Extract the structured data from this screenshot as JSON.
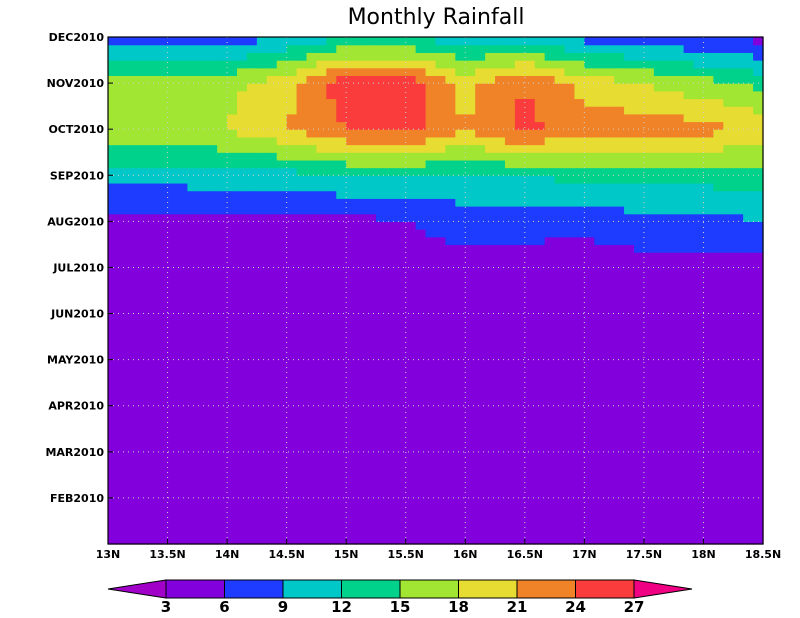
{
  "chart_data": {
    "type": "heatmap",
    "title": "Monthly Rainfall",
    "x_tick_labels": [
      "13N",
      "13.5N",
      "14N",
      "14.5N",
      "15N",
      "15.5N",
      "16N",
      "16.5N",
      "17N",
      "17.5N",
      "18N",
      "18.5N"
    ],
    "x_ticks": [
      13,
      13.5,
      14,
      14.5,
      15,
      15.5,
      16,
      16.5,
      17,
      17.5,
      18,
      18.5
    ],
    "xlim": [
      13,
      18.5
    ],
    "y_tick_labels": [
      "FEB2010",
      "MAR2010",
      "APR2010",
      "MAY2010",
      "JUN2010",
      "JUL2010",
      "AUG2010",
      "SEP2010",
      "OCT2010",
      "NOV2010",
      "DEC2010"
    ],
    "y_ticks": [
      2,
      3,
      4,
      5,
      6,
      7,
      8,
      9,
      10,
      11,
      12
    ],
    "ylim": [
      1,
      12
    ],
    "grid": true,
    "x": [
      13,
      13.5,
      14,
      14.5,
      15,
      15.5,
      16,
      16.5,
      17,
      17.5,
      18,
      18.5
    ],
    "y": [
      1,
      2,
      3,
      4,
      5,
      6,
      7,
      8,
      9,
      10,
      11,
      12
    ],
    "values": [
      [
        3,
        3,
        3,
        3,
        3,
        3,
        3,
        3,
        3,
        3,
        3,
        3
      ],
      [
        3,
        3,
        3,
        3,
        3,
        3,
        3,
        3,
        3,
        3,
        3,
        3
      ],
      [
        3,
        3,
        3,
        3,
        3,
        3,
        3,
        3,
        3,
        3,
        3,
        3
      ],
      [
        4,
        4,
        4,
        4,
        4,
        4,
        4,
        4,
        4,
        4,
        4,
        4
      ],
      [
        5,
        5,
        5,
        5,
        5,
        6,
        5,
        5,
        5,
        5,
        5,
        5
      ],
      [
        5,
        5,
        5,
        5,
        5,
        5,
        5,
        5,
        5,
        5,
        5,
        5
      ],
      [
        4,
        4,
        3,
        5,
        5,
        5,
        5,
        5,
        4,
        5,
        5,
        5
      ],
      [
        5,
        5,
        5,
        5,
        5,
        6,
        7,
        7,
        7,
        8,
        8,
        9
      ],
      [
        10,
        10,
        11,
        11,
        12,
        12,
        12,
        12,
        13,
        13,
        13,
        14
      ],
      [
        18,
        18,
        18,
        21,
        24,
        25,
        21,
        25,
        22,
        23,
        22,
        20
      ],
      [
        17,
        17,
        17,
        20,
        26,
        26,
        20,
        24,
        20,
        18,
        16,
        14
      ],
      [
        8,
        8,
        7,
        9,
        12,
        12,
        10,
        11,
        8,
        7,
        6,
        5
      ]
    ],
    "colorbar": {
      "levels": [
        "3",
        "6",
        "9",
        "12",
        "15",
        "18",
        "21",
        "24",
        "27"
      ],
      "colors": [
        "#a000c8",
        "#8200dc",
        "#1e3cff",
        "#00c8c8",
        "#00d28c",
        "#a0e632",
        "#e6dc32",
        "#f08228",
        "#fa3c3c",
        "#f00082"
      ]
    }
  }
}
